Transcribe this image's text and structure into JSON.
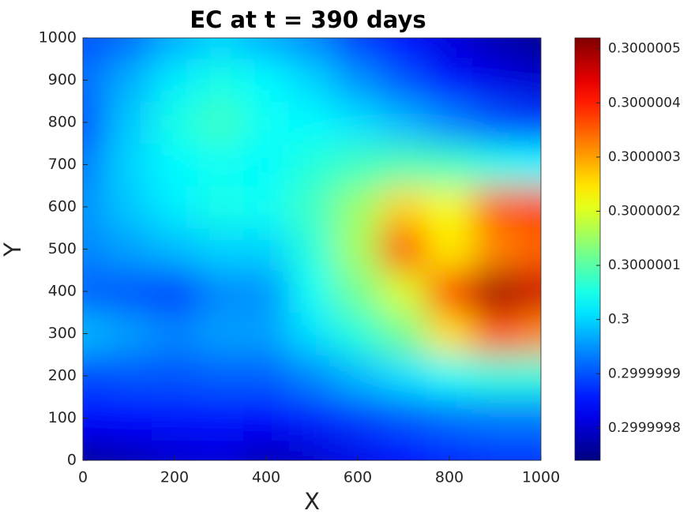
{
  "chart_data": {
    "type": "heatmap",
    "title": "EC at t = 390 days",
    "xlabel": "X",
    "ylabel": "Y",
    "colormap": "jet",
    "x": [
      0,
      100,
      200,
      300,
      400,
      500,
      600,
      700,
      800,
      900,
      1000
    ],
    "y": [
      0,
      100,
      200,
      300,
      400,
      500,
      600,
      700,
      800,
      900,
      1000
    ],
    "z": [
      [
        0.29999976,
        0.29999978,
        0.2999998,
        0.29999981,
        0.29999978,
        0.2999998,
        0.29999982,
        0.29999984,
        0.29999986,
        0.29999987,
        0.29999987
      ],
      [
        0.29999984,
        0.29999984,
        0.29999985,
        0.29999985,
        0.29999984,
        0.29999986,
        0.29999988,
        0.2999999,
        0.29999992,
        0.29999993,
        0.29999993
      ],
      [
        0.29999989,
        0.2999999,
        0.2999999,
        0.29999991,
        0.29999991,
        0.29999994,
        0.29999998,
        0.30000001,
        0.30000004,
        0.30000006,
        0.30000006
      ],
      [
        0.29999998,
        0.29999996,
        0.29999994,
        0.29999996,
        0.29999996,
        0.30000001,
        0.30000006,
        0.30000012,
        0.30000025,
        0.30000036,
        0.30000032
      ],
      [
        0.29999991,
        0.2999999,
        0.29999988,
        0.29999994,
        0.29999995,
        0.30000004,
        0.30000012,
        0.3000002,
        0.30000038,
        0.3000005,
        0.30000046
      ],
      [
        0.29999994,
        0.29999996,
        0.29999998,
        0.3,
        0.3,
        0.30000006,
        0.30000016,
        0.30000038,
        0.30000024,
        0.30000032,
        0.30000035
      ],
      [
        0.29999995,
        0.29999999,
        0.30000002,
        0.30000005,
        0.30000004,
        0.30000008,
        0.30000015,
        0.30000026,
        0.30000022,
        0.30000035,
        0.30000037
      ],
      [
        0.29999993,
        0.3,
        0.30000003,
        0.30000004,
        0.30000003,
        0.30000006,
        0.30000008,
        0.30000009,
        0.30000008,
        0.30000005,
        0.30000003
      ],
      [
        0.2999999,
        0.29999999,
        0.30000005,
        0.30000008,
        0.30000004,
        0.30000003,
        0.30000001,
        0.29999998,
        0.29999994,
        0.2999999,
        0.29999988
      ],
      [
        0.29999992,
        0.29999997,
        0.30000002,
        0.30000005,
        0.30000003,
        0.3,
        0.29999995,
        0.2999999,
        0.29999985,
        0.29999982,
        0.2999998
      ],
      [
        0.2999999,
        0.29999992,
        0.29999997,
        0.3,
        0.29999997,
        0.29999994,
        0.29999988,
        0.29999984,
        0.29999981,
        0.29999978,
        0.29999975
      ]
    ],
    "xlim": [
      0,
      1000
    ],
    "ylim": [
      0,
      1000
    ],
    "xticks": [
      0,
      200,
      400,
      600,
      800,
      1000
    ],
    "yticks": [
      0,
      100,
      200,
      300,
      400,
      500,
      600,
      700,
      800,
      900,
      1000
    ],
    "clim": [
      0.29999974,
      0.30000052
    ],
    "cticks": [
      0.2999998,
      0.2999999,
      0.3,
      0.3000001,
      0.3000002,
      0.3000003,
      0.3000004,
      0.3000005
    ]
  }
}
